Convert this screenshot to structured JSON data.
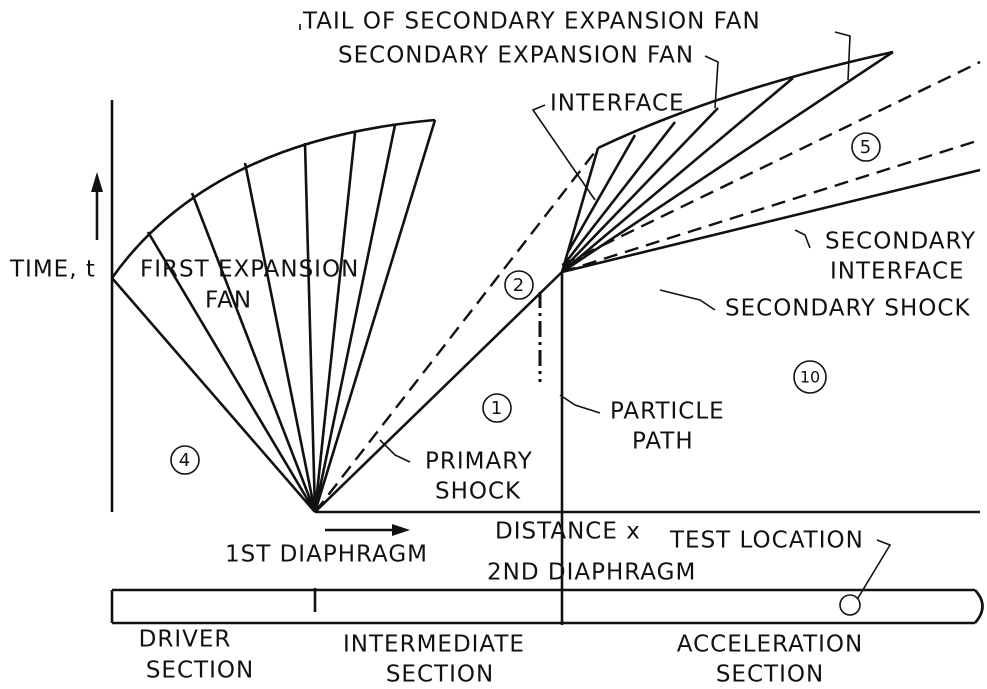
{
  "diagram": {
    "axes": {
      "time": "TIME, t",
      "distance": "DISTANCE x"
    },
    "diaphragms": [
      "1ST DIAPHRAGM",
      "2ND DIAPHRAGM"
    ],
    "waves": {
      "tail_fan": "TAIL OF SECONDARY EXPANSION FAN",
      "secondary_fan": "SECONDARY EXPANSION FAN",
      "interface": "INTERFACE",
      "first_fan": [
        "FIRST EXPANSION",
        "FAN"
      ],
      "secondary_interface": [
        "SECONDARY",
        "INTERFACE"
      ],
      "secondary_shock": "SECONDARY SHOCK",
      "particle_path": [
        "PARTICLE",
        "PATH"
      ],
      "primary_shock": [
        "PRIMARY",
        "SHOCK"
      ],
      "test_location": "TEST LOCATION"
    },
    "regions": [
      "4",
      "1",
      "2",
      "5",
      "10"
    ],
    "sections": [
      [
        "DRIVER",
        "SECTION"
      ],
      [
        "INTERMEDIATE",
        "SECTION"
      ],
      [
        "ACCELERATION",
        "SECTION"
      ]
    ]
  }
}
